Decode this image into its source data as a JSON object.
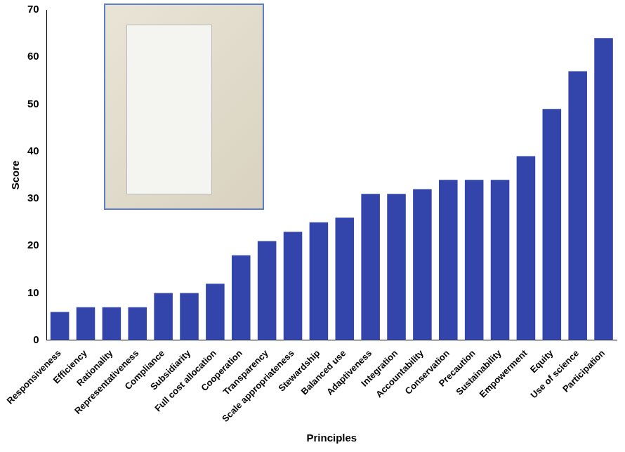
{
  "chart_data": {
    "type": "bar",
    "x_label": "Principles",
    "y_label": "Score",
    "categories": [
      "Responsiveness",
      "Efficiency",
      "Rationality",
      "Representativeness",
      "Compliance",
      "Subsidiarity",
      "Full cost allocation",
      "Cooperation",
      "Transparency",
      "Scale appropriateness",
      "Stewardship",
      "Balanced use",
      "Adaptiveness",
      "Integration",
      "Accountability",
      "Conservation",
      "Precaution",
      "Sustainability",
      "Empowerment",
      "Equity",
      "Use of science",
      "Participation"
    ],
    "values": [
      6,
      7,
      7,
      7,
      10,
      10,
      12,
      18,
      21,
      23,
      25,
      26,
      31,
      31,
      32,
      34,
      34,
      34,
      39,
      49,
      57,
      64
    ],
    "color": "#3344aa",
    "ylim": [
      0,
      70
    ],
    "yticks": [
      0,
      10,
      20,
      30,
      40,
      50,
      60,
      70
    ],
    "grid": false
  }
}
